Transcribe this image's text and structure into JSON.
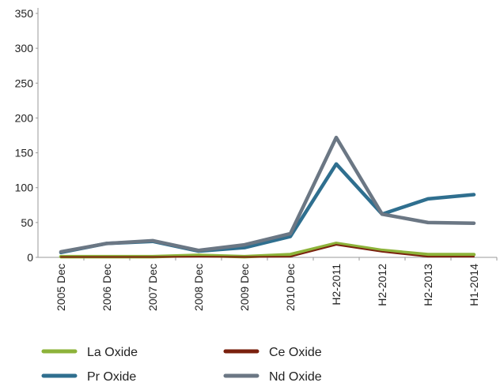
{
  "chart_data": {
    "type": "line",
    "categories": [
      "2005 Dec",
      "2006 Dec",
      "2007 Dec",
      "2008 Dec",
      "2009 Dec",
      "2010 Dec",
      "H2-2011",
      "H2-2012",
      "H2-2013",
      "H1-2014"
    ],
    "series": [
      {
        "name": "Pr Oxide",
        "color": "#2f6f8f",
        "values": [
          7,
          20,
          23,
          9,
          14,
          30,
          134,
          62,
          84,
          90
        ]
      },
      {
        "name": "Nd Oxide",
        "color": "#6b7784",
        "values": [
          8,
          20,
          24,
          10,
          18,
          34,
          172,
          62,
          50,
          49
        ]
      },
      {
        "name": "La Oxide",
        "color": "#8db33a",
        "values": [
          1,
          1,
          1,
          3,
          1,
          4,
          20,
          10,
          4,
          4
        ]
      },
      {
        "name": "Ce Oxide",
        "color": "#7a200e",
        "values": [
          0.5,
          0.5,
          0.5,
          1,
          0.5,
          1,
          18,
          8,
          1,
          1
        ]
      }
    ],
    "ylim": [
      0,
      350
    ],
    "yticks": [
      0,
      50,
      100,
      150,
      200,
      250,
      300,
      350
    ]
  }
}
